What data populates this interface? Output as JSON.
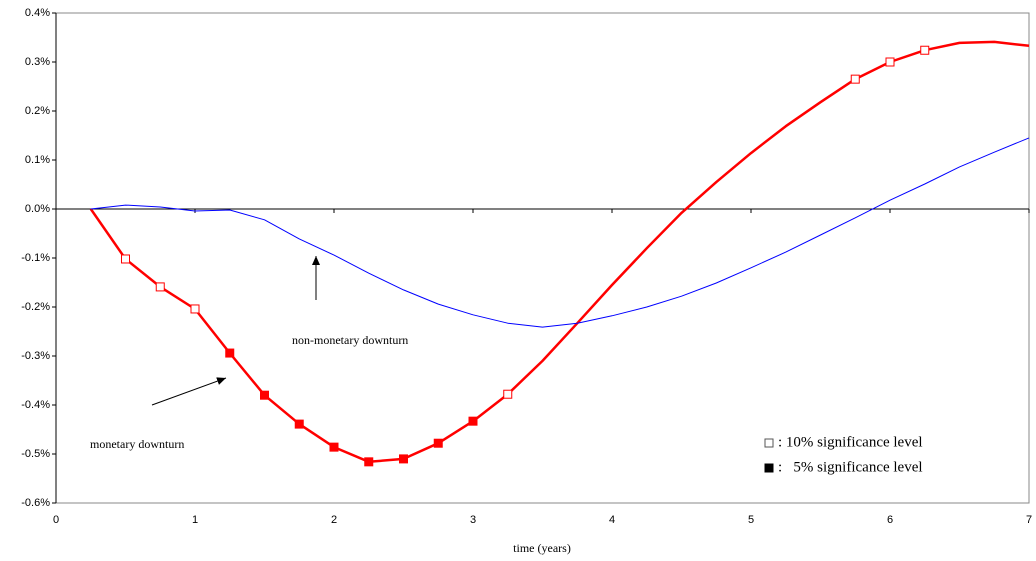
{
  "chart_data": {
    "type": "line",
    "x_label": "time (years)",
    "x": [
      0.25,
      0.5,
      0.75,
      1.0,
      1.25,
      1.5,
      1.75,
      2.0,
      2.25,
      2.5,
      2.75,
      3.0,
      3.25,
      3.5,
      3.75,
      4.0,
      4.25,
      4.5,
      4.75,
      5.0,
      5.25,
      5.5,
      5.75,
      6.0,
      6.25,
      6.5,
      6.75,
      7.0
    ],
    "series": [
      {
        "color": "#ff0000",
        "width": 2.5,
        "values": [
          0,
          -0.102,
          -0.159,
          -0.204,
          -0.294,
          -0.38,
          -0.439,
          -0.486,
          -0.516,
          -0.51,
          -0.478,
          -0.433,
          -0.378,
          -0.31,
          -0.233,
          -0.155,
          -0.08,
          -0.008,
          0.055,
          0.114,
          0.169,
          0.218,
          0.265,
          0.3,
          0.324,
          0.339,
          0.341,
          0.333
        ]
      },
      {
        "color": "#0000ff",
        "width": 1,
        "values": [
          0,
          0.008,
          0.004,
          -0.004,
          -0.002,
          -0.022,
          -0.061,
          -0.094,
          -0.131,
          -0.165,
          -0.194,
          -0.216,
          -0.233,
          -0.241,
          -0.233,
          -0.218,
          -0.2,
          -0.178,
          -0.151,
          -0.12,
          -0.088,
          -0.053,
          -0.018,
          0.018,
          0.051,
          0.086,
          0.116,
          0.145
        ]
      },
      {
        "name": ": 10% significance level",
        "marker": "open",
        "color": "#ff0000",
        "values": [
          null,
          -0.102,
          -0.159,
          -0.204,
          null,
          null,
          null,
          null,
          null,
          null,
          null,
          null,
          -0.378,
          null,
          null,
          null,
          null,
          null,
          null,
          null,
          null,
          null,
          0.265,
          0.3,
          0.324,
          null,
          null,
          null
        ]
      },
      {
        "name": ":   5% significance level",
        "marker": "filled",
        "color": "#ff0000",
        "values": [
          null,
          null,
          null,
          null,
          -0.294,
          -0.38,
          -0.439,
          -0.486,
          -0.516,
          -0.51,
          -0.478,
          -0.433,
          null,
          null,
          null,
          null,
          null,
          null,
          null,
          null,
          null,
          null,
          null,
          null,
          null,
          null,
          null,
          null
        ]
      }
    ],
    "annotations": [
      {
        "text": "non-monetary downturn"
      },
      {
        "text": "monetary downturn"
      }
    ],
    "xlim": [
      0,
      7
    ],
    "xticks": [
      0,
      1,
      2,
      3,
      4,
      5,
      6,
      7
    ],
    "ylim": [
      -0.6,
      0.4
    ],
    "yticks": [
      {
        "value": -0.6,
        "label": "-0.6%"
      },
      {
        "value": -0.5,
        "label": "-0.5%"
      },
      {
        "value": -0.4,
        "label": "-0.4%"
      },
      {
        "value": -0.3,
        "label": "-0.3%"
      },
      {
        "value": -0.2,
        "label": "-0.2%"
      },
      {
        "value": -0.1,
        "label": "-0.1%"
      },
      {
        "value": 0,
        "label": "0.0%"
      },
      {
        "value": 0.1,
        "label": "0.1%"
      },
      {
        "value": 0.2,
        "label": "0.2%"
      },
      {
        "value": 0.3,
        "label": "0.3%"
      },
      {
        "value": 0.4,
        "label": "0.4%"
      }
    ]
  }
}
